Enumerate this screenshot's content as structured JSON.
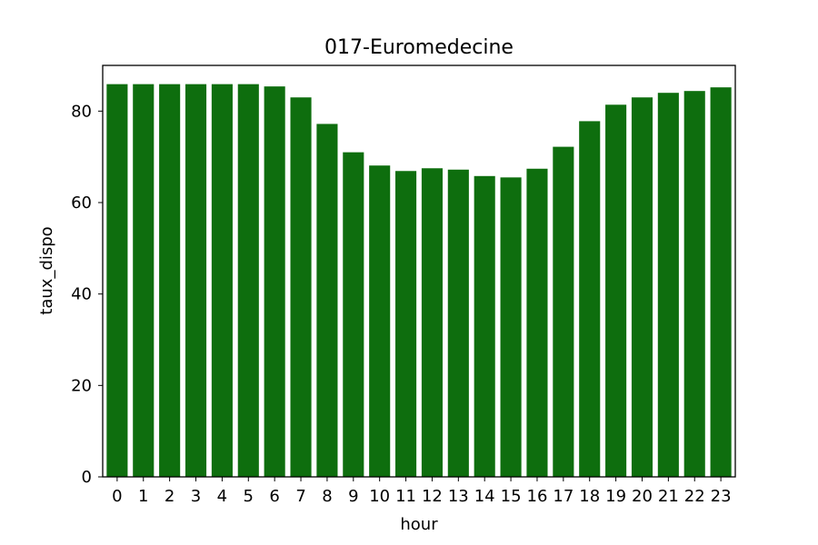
{
  "chart_data": {
    "type": "bar",
    "title": "017-Euromedecine",
    "xlabel": "hour",
    "ylabel": "taux_dispo",
    "categories": [
      "0",
      "1",
      "2",
      "3",
      "4",
      "5",
      "6",
      "7",
      "8",
      "9",
      "10",
      "11",
      "12",
      "13",
      "14",
      "15",
      "16",
      "17",
      "18",
      "19",
      "20",
      "21",
      "22",
      "23"
    ],
    "values": [
      85.9,
      85.9,
      85.9,
      85.9,
      85.9,
      85.9,
      85.4,
      83.0,
      77.2,
      71.0,
      68.1,
      66.9,
      67.5,
      67.2,
      65.8,
      65.5,
      67.4,
      72.2,
      77.8,
      81.4,
      83.0,
      84.0,
      84.4,
      85.2
    ],
    "ylim": [
      0,
      90
    ],
    "yticks": [
      0,
      20,
      40,
      60,
      80
    ],
    "bar_color": "#0e6e0e",
    "grid": false,
    "legend": "none"
  }
}
